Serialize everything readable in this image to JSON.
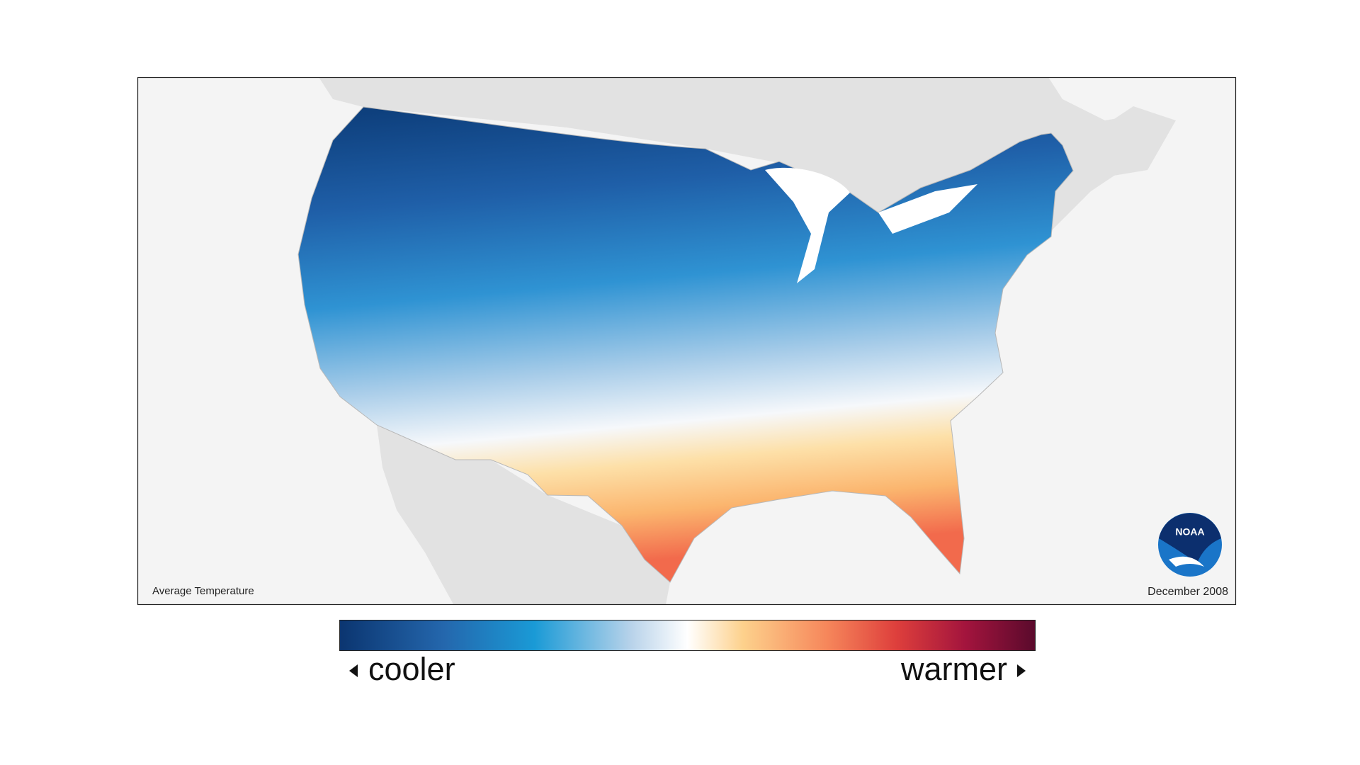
{
  "map": {
    "title": "Average Temperature",
    "date": "December 2008",
    "logo": "NOAA"
  },
  "legend": {
    "low_label": "cooler",
    "high_label": "warmer"
  }
}
